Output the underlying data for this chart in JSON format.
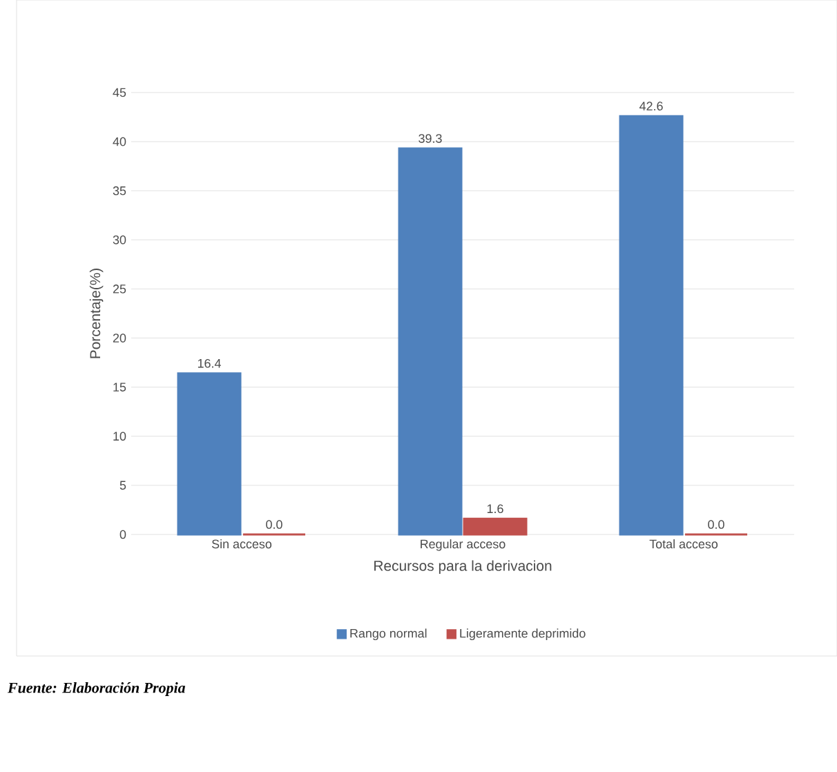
{
  "chart_data": {
    "type": "bar",
    "categories": [
      "Sin acceso",
      "Regular acceso",
      "Total acceso"
    ],
    "series": [
      {
        "name": "Rango normal",
        "color": "#4f81bd",
        "values": [
          16.4,
          39.3,
          42.6
        ],
        "value_labels": [
          "16.4",
          "39.3",
          "42.6"
        ]
      },
      {
        "name": "Ligeramente deprimido",
        "color": "#c0504d",
        "values": [
          0,
          1.6,
          0
        ],
        "value_labels": [
          "0.0",
          "1.6",
          "0.0"
        ]
      }
    ],
    "ylabel": "Porcentaje(%)",
    "xlabel": "Recursos para la derivacion",
    "ylim": [
      0,
      45
    ],
    "yticks": [
      0,
      5,
      10,
      15,
      20,
      25,
      30,
      35,
      40,
      45
    ],
    "grid": "y",
    "legend": "bottom",
    "annotations": [
      "Fuente: Elaboración Propia"
    ]
  }
}
